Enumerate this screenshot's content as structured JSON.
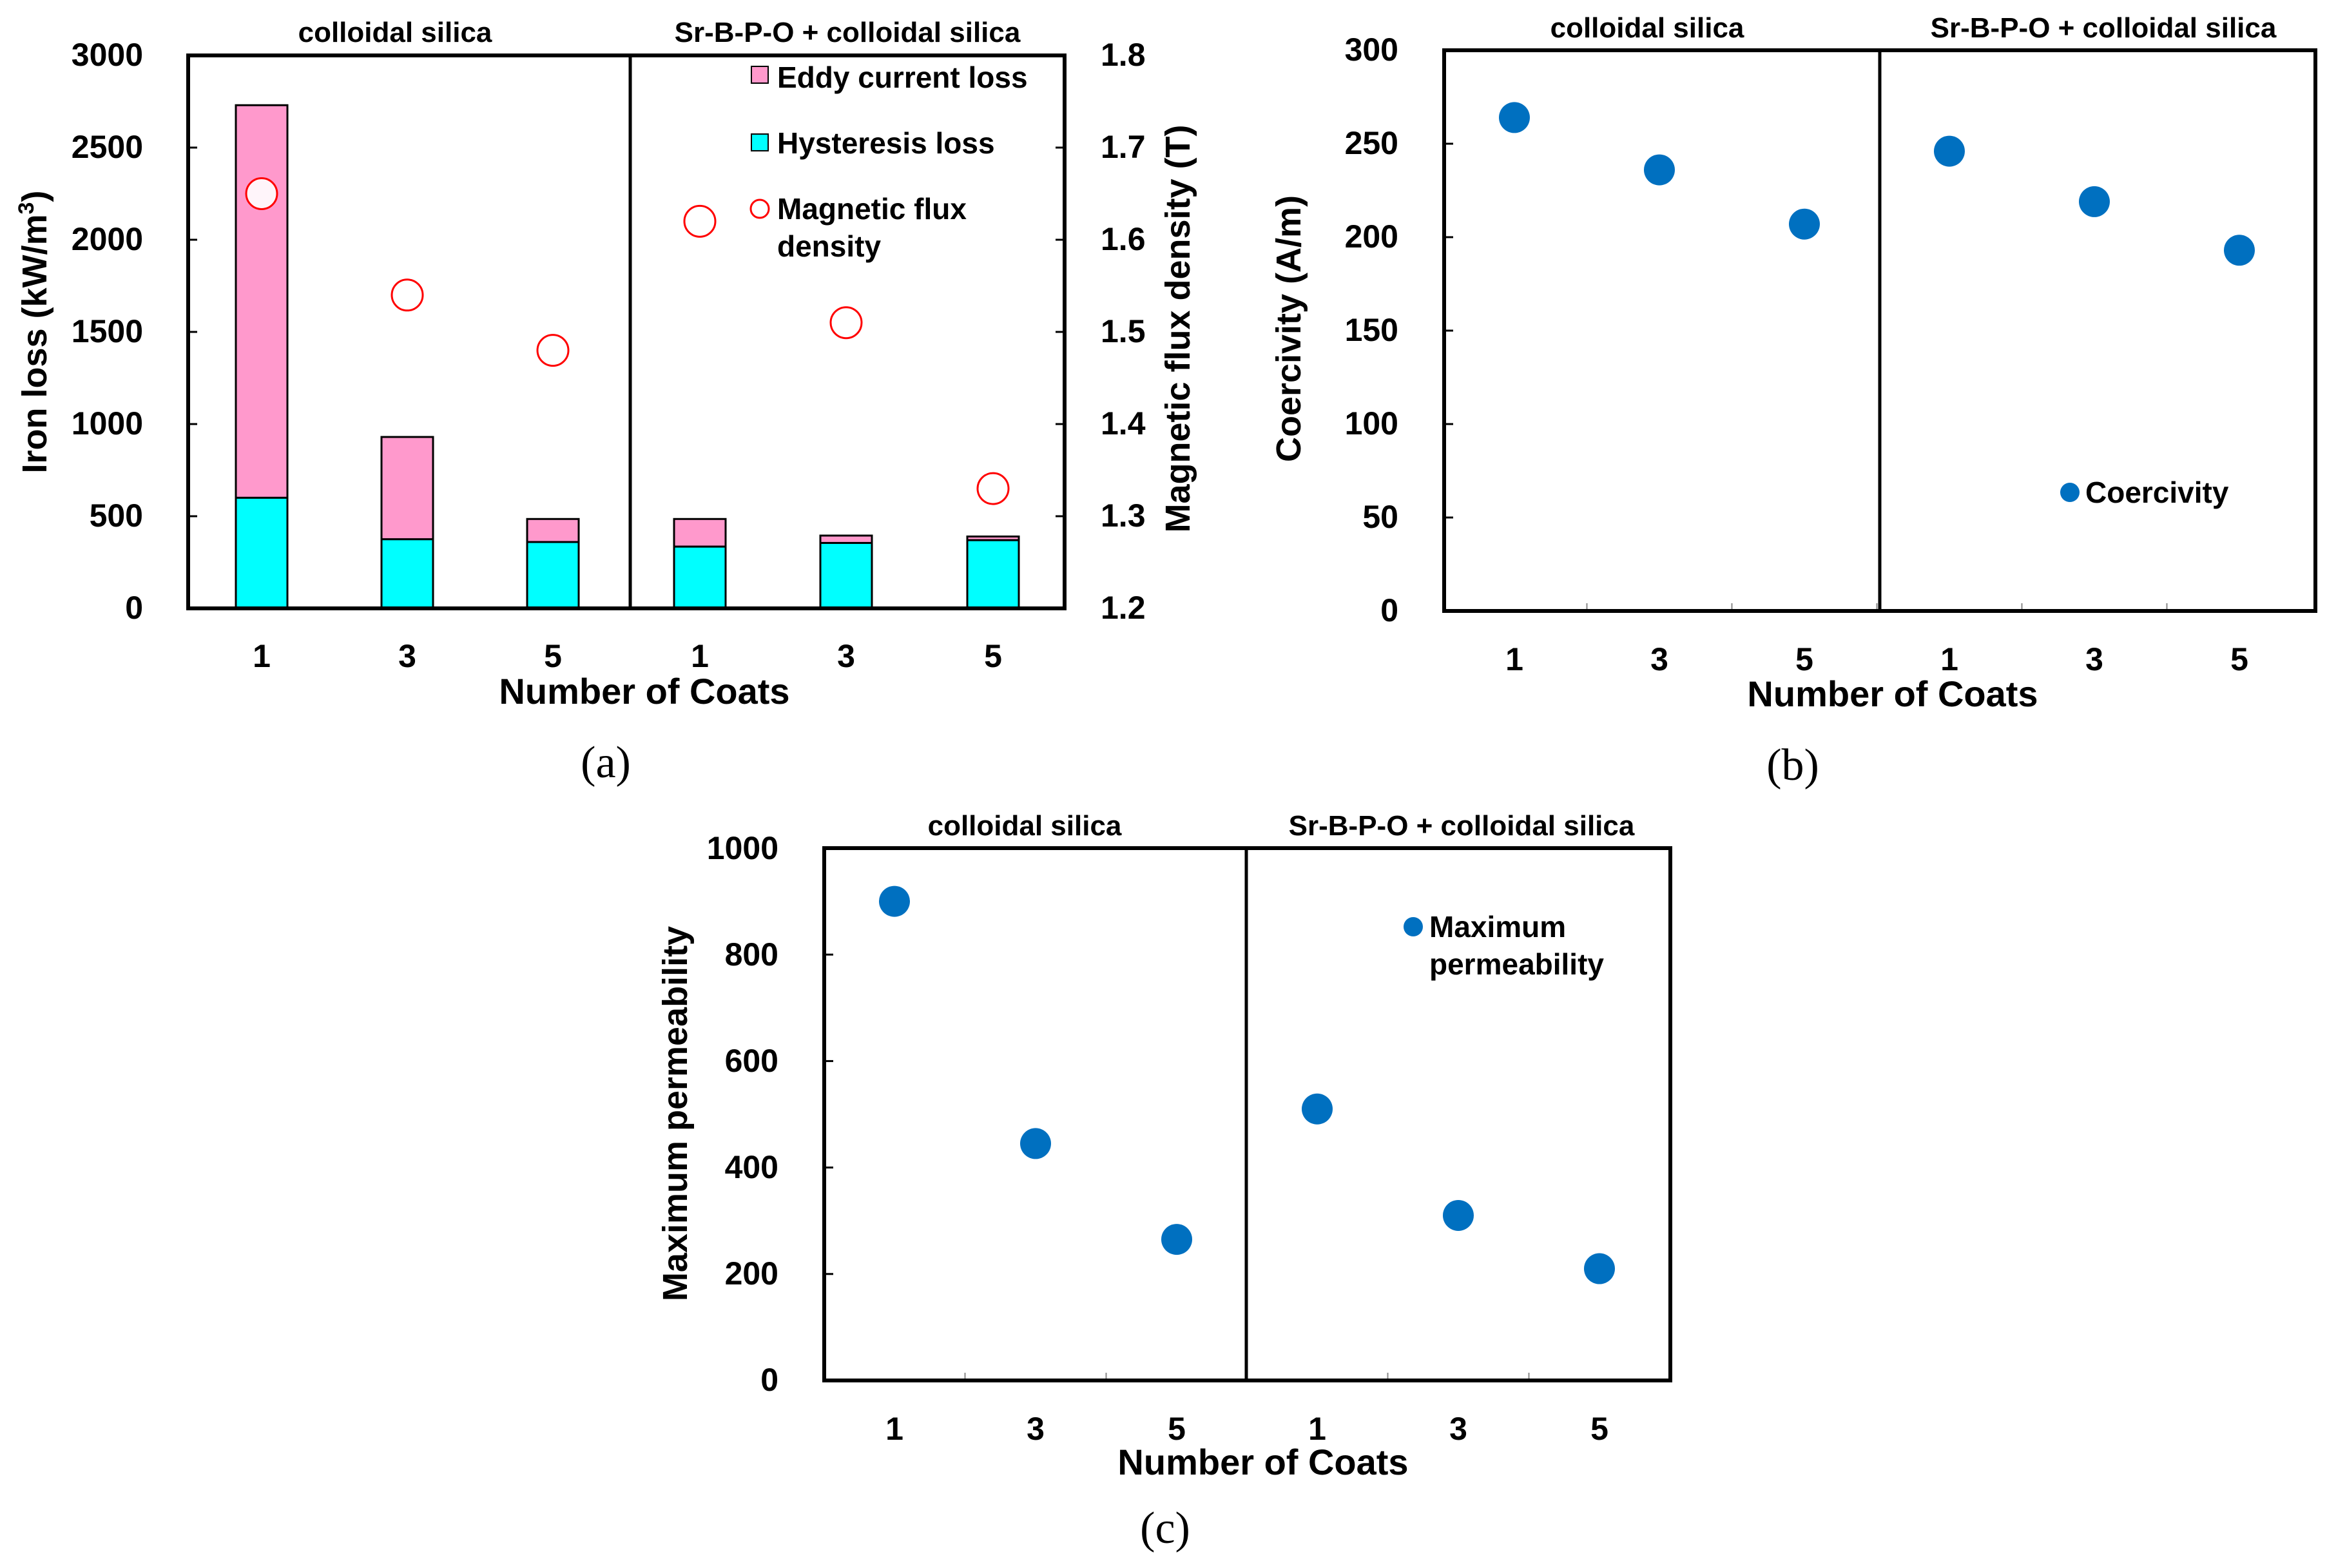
{
  "colors": {
    "eddy": "#ff99cc",
    "hysteresis": "#00ffff",
    "flux_marker": "#ff0000",
    "point": "#0070c0"
  },
  "chart_data": [
    {
      "id": "a",
      "caption": "(a)",
      "type": "bar",
      "stacked": true,
      "groups": [
        "colloidal silica",
        "Sr-B-P-O + colloidal silica"
      ],
      "categories": [
        "1",
        "3",
        "5",
        "1",
        "3",
        "5"
      ],
      "series": [
        {
          "name": "Hysteresis loss",
          "values": [
            600,
            375,
            360,
            335,
            355,
            370
          ]
        },
        {
          "name": "Eddy current loss",
          "values": [
            2130,
            555,
            125,
            150,
            40,
            20
          ]
        }
      ],
      "secondary_series": {
        "name": "Magnetic flux density",
        "values": [
          1.65,
          1.54,
          1.48,
          1.62,
          1.51,
          1.33
        ]
      },
      "legend": [
        "Eddy current loss",
        "Hysteresis loss",
        "Magnetic flux",
        "density"
      ],
      "xlabel": "Number of Coats",
      "ylabel_left": {
        "pre": "Iron loss (kW/m",
        "sup": "3",
        "post": ")"
      },
      "ylabel_right": "Magnetic flux density (T)",
      "ylim": [
        0,
        3000
      ],
      "y2lim": [
        1.2,
        1.8
      ],
      "yticks": [
        "0",
        "500",
        "1000",
        "1500",
        "2000",
        "2500",
        "3000"
      ],
      "y2ticks": [
        "1.2",
        "1.3",
        "1.4",
        "1.5",
        "1.6",
        "1.7",
        "1.8"
      ]
    },
    {
      "id": "b",
      "caption": "(b)",
      "type": "scatter",
      "groups": [
        "colloidal silica",
        "Sr-B-P-O + colloidal silica"
      ],
      "categories": [
        "1",
        "3",
        "5",
        "1",
        "3",
        "5"
      ],
      "series": [
        {
          "name": "Coercivity",
          "values": [
            264,
            236,
            207,
            246,
            219,
            193
          ]
        }
      ],
      "legend": [
        "Coercivity"
      ],
      "xlabel": "Number of Coats",
      "ylabel": "Coercivity (A/m)",
      "ylim": [
        0,
        300
      ],
      "yticks": [
        "0",
        "50",
        "100",
        "150",
        "200",
        "250",
        "300"
      ]
    },
    {
      "id": "c",
      "caption": "(c)",
      "type": "scatter",
      "groups": [
        "colloidal silica",
        "Sr-B-P-O + colloidal silica"
      ],
      "categories": [
        "1",
        "3",
        "5",
        "1",
        "3",
        "5"
      ],
      "series": [
        {
          "name": "Maximum permeability",
          "values": [
            900,
            445,
            265,
            510,
            310,
            210
          ]
        }
      ],
      "legend": [
        "Maximum",
        "permeability"
      ],
      "xlabel": "Number of Coats",
      "ylabel": "Maximum permeability",
      "ylim": [
        0,
        1000
      ],
      "yticks": [
        "0",
        "200",
        "400",
        "600",
        "800",
        "1000"
      ]
    }
  ]
}
